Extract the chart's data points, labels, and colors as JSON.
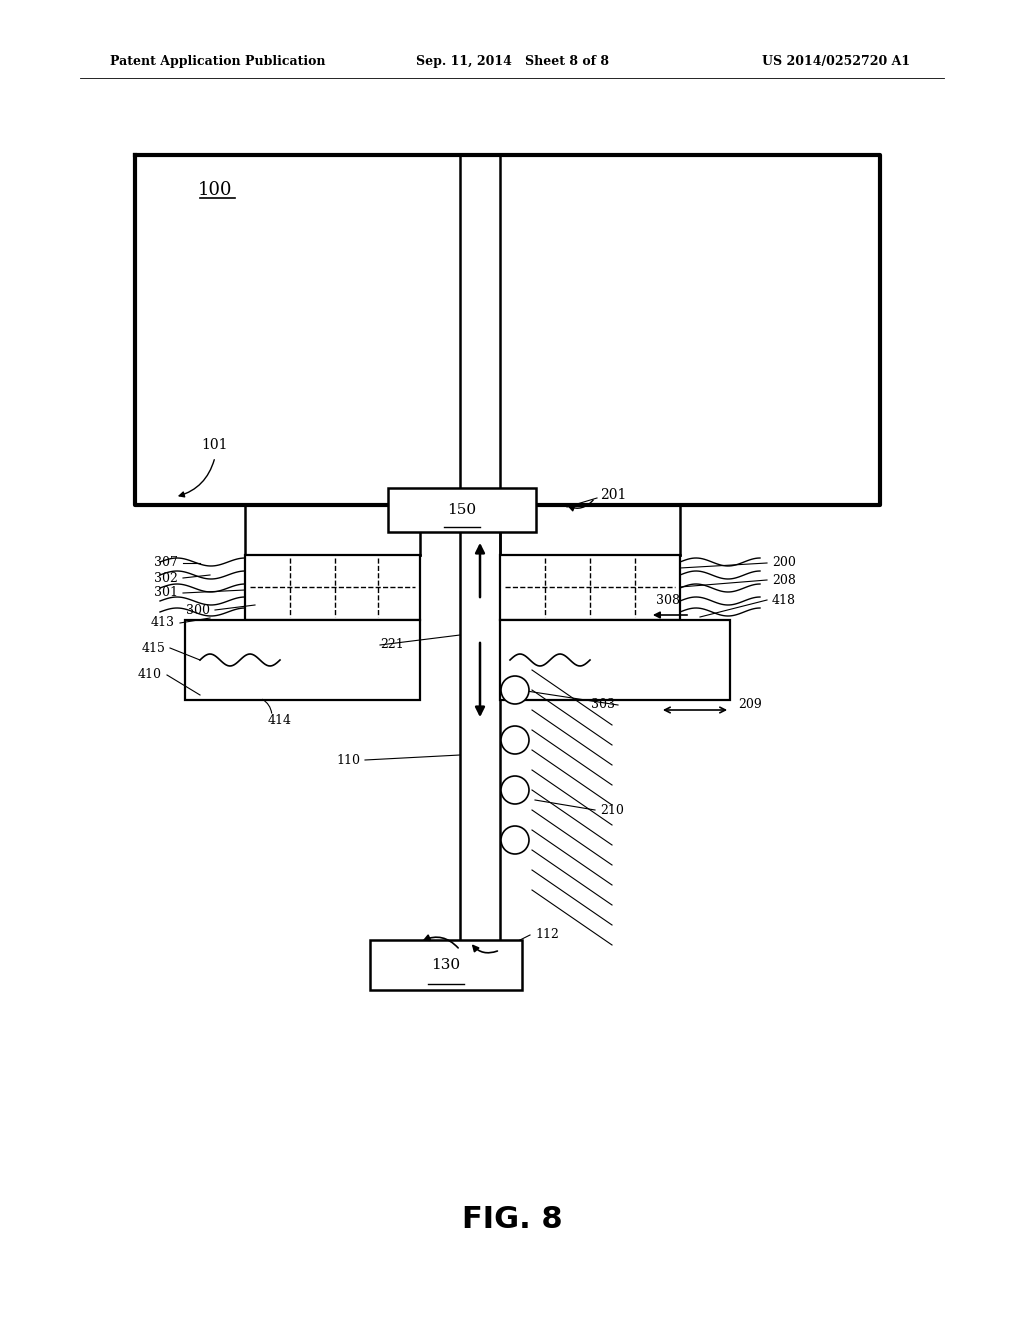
{
  "bg_color": "#ffffff",
  "line_color": "#000000",
  "header_left": "Patent Application Publication",
  "header_mid": "Sep. 11, 2014   Sheet 8 of 8",
  "header_right": "US 2014/0252720 A1",
  "fig_label": "FIG. 8"
}
